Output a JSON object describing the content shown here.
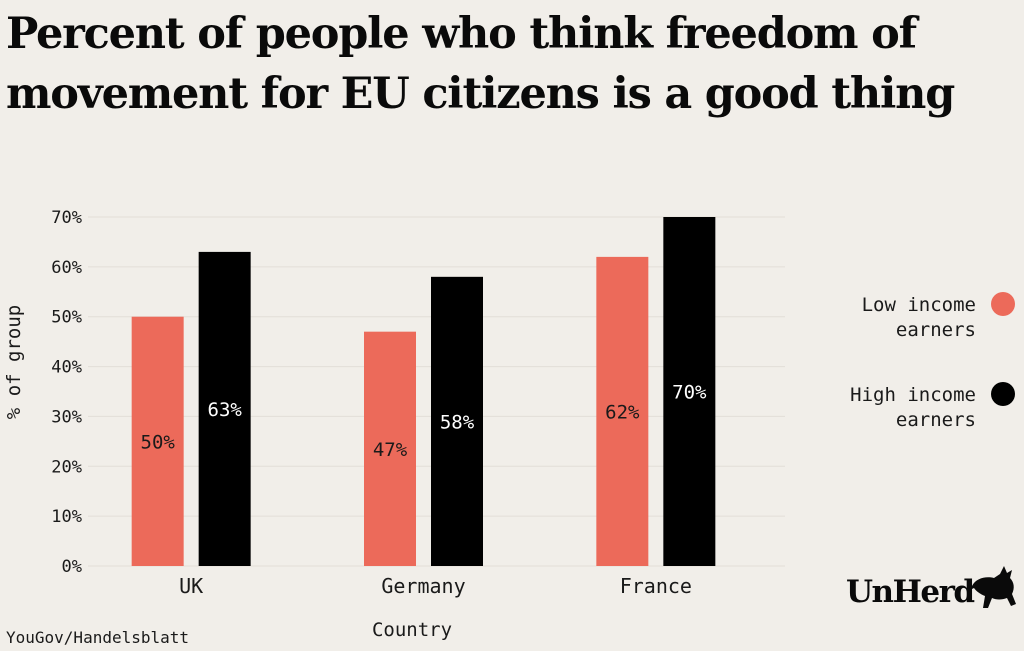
{
  "title": "Percent of people who think freedom of movement for EU citizens is a good thing",
  "source": "YouGov/Handelsblatt",
  "brand": "UnHerd",
  "colors": {
    "low": "#ec6a5a",
    "high": "#000000",
    "background": "#f1eee9",
    "grid": "#e2ded8"
  },
  "chart_data": {
    "type": "bar",
    "xlabel": "Country",
    "ylabel": "% of group",
    "categories": [
      "UK",
      "Germany",
      "France"
    ],
    "series": [
      {
        "name": "Low income earners",
        "values": [
          50,
          47,
          62
        ],
        "labels": [
          "50%",
          "47%",
          "62%"
        ]
      },
      {
        "name": "High income earners",
        "values": [
          63,
          58,
          70
        ],
        "labels": [
          "63%",
          "58%",
          "70%"
        ]
      }
    ],
    "ylim": [
      0,
      70
    ],
    "yticks": [
      "0%",
      "10%",
      "20%",
      "30%",
      "40%",
      "50%",
      "60%",
      "70%"
    ],
    "legend_position": "right",
    "grid": true
  }
}
